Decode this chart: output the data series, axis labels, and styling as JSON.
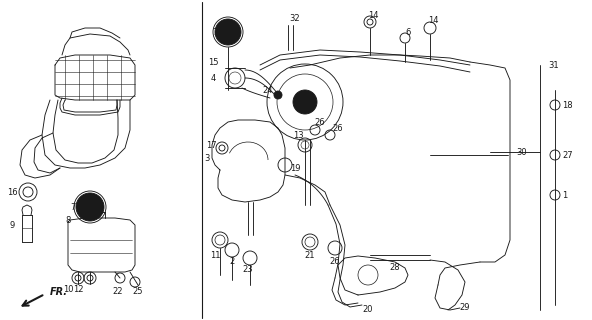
{
  "bg_color": "#ffffff",
  "line_color": "#1a1a1a",
  "fig_width": 5.92,
  "fig_height": 3.2,
  "dpi": 100
}
